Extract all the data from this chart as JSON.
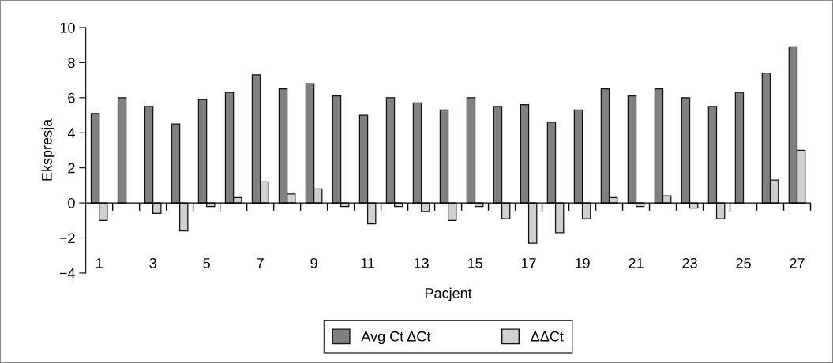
{
  "chart_data": {
    "type": "bar",
    "xlabel": "Pacjent",
    "ylabel": "Ekspresja",
    "categories": [
      "1",
      null,
      "3",
      null,
      "5",
      null,
      "7",
      null,
      "9",
      null,
      "11",
      null,
      "13",
      null,
      "15",
      null,
      "17",
      null,
      "19",
      null,
      "21",
      null,
      "23",
      null,
      "25",
      null,
      "27"
    ],
    "series": [
      {
        "name": "Avg Ct ΔCt",
        "color": "#808080",
        "values": [
          5.1,
          6.0,
          5.5,
          4.5,
          5.9,
          6.3,
          7.3,
          6.5,
          6.8,
          6.1,
          5.0,
          6.0,
          5.7,
          5.3,
          6.0,
          5.5,
          5.6,
          4.6,
          5.3,
          6.5,
          6.1,
          6.5,
          6.0,
          5.5,
          6.3,
          7.4,
          8.9
        ]
      },
      {
        "name": "ΔΔCt",
        "color": "#d0d0d0",
        "values": [
          -1.0,
          null,
          -0.6,
          -1.6,
          -0.2,
          0.3,
          1.2,
          0.5,
          0.8,
          -0.2,
          -1.2,
          -0.2,
          -0.5,
          -1.0,
          -0.2,
          -0.9,
          -2.3,
          -1.7,
          -0.9,
          0.3,
          -0.2,
          0.4,
          -0.3,
          -0.9,
          null,
          1.3,
          3.0
        ]
      }
    ],
    "ylim": [
      -4,
      10
    ],
    "yticks": [
      {
        "value": -4,
        "label": "−4"
      },
      {
        "value": -2,
        "label": "−2"
      },
      0,
      2,
      4,
      6,
      8,
      10
    ],
    "legend": "bottom"
  }
}
